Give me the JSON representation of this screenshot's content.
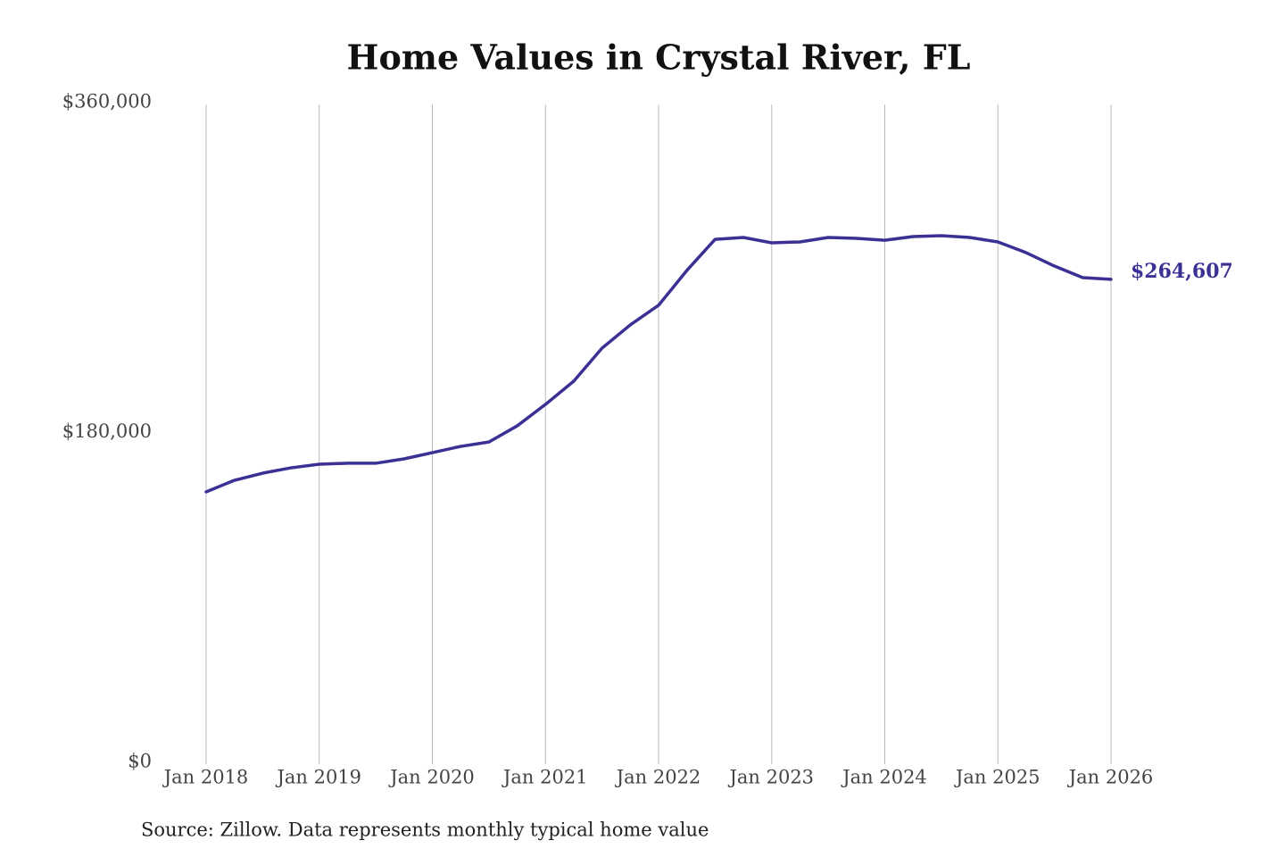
{
  "chart_data": {
    "type": "line",
    "title": "Home Values in Crystal River, FL",
    "source": "Source: Zillow. Data represents monthly typical home value",
    "x": [
      "2018-01",
      "2018-04",
      "2018-07",
      "2018-10",
      "2019-01",
      "2019-04",
      "2019-07",
      "2019-10",
      "2020-01",
      "2020-04",
      "2020-07",
      "2020-10",
      "2021-01",
      "2021-04",
      "2021-07",
      "2021-10",
      "2022-01",
      "2022-04",
      "2022-07",
      "2022-10",
      "2023-01",
      "2023-04",
      "2023-07",
      "2023-10",
      "2024-01",
      "2024-04",
      "2024-07",
      "2024-10",
      "2025-01",
      "2025-04",
      "2025-07",
      "2025-10",
      "2026-01"
    ],
    "series": [
      {
        "name": "Typical home value",
        "color": "#3b3195",
        "values": [
          148600,
          154900,
          158800,
          161700,
          163700,
          164200,
          164200,
          166600,
          170000,
          173400,
          175800,
          184600,
          196300,
          209000,
          227000,
          239700,
          250400,
          269400,
          286400,
          287400,
          284500,
          285000,
          287400,
          286900,
          285900,
          287900,
          288400,
          287400,
          285000,
          279100,
          271800,
          265500,
          264607
        ],
        "value_labels": [
          null,
          null,
          null,
          null,
          null,
          null,
          null,
          null,
          null,
          null,
          null,
          null,
          null,
          null,
          null,
          null,
          null,
          null,
          null,
          null,
          null,
          null,
          null,
          null,
          null,
          null,
          null,
          null,
          null,
          null,
          null,
          null,
          "$264,607"
        ]
      }
    ],
    "xlim": [
      "2018-01",
      "2026-01"
    ],
    "xticks": [
      {
        "value": "2018-01",
        "label": "Jan 2018"
      },
      {
        "value": "2019-01",
        "label": "Jan 2019"
      },
      {
        "value": "2020-01",
        "label": "Jan 2020"
      },
      {
        "value": "2021-01",
        "label": "Jan 2021"
      },
      {
        "value": "2022-01",
        "label": "Jan 2022"
      },
      {
        "value": "2023-01",
        "label": "Jan 2023"
      },
      {
        "value": "2024-01",
        "label": "Jan 2024"
      },
      {
        "value": "2025-01",
        "label": "Jan 2025"
      },
      {
        "value": "2026-01",
        "label": "Jan 2026"
      }
    ],
    "ylim": [
      0,
      360000
    ],
    "yticks": [
      {
        "value": 0,
        "label": "$0"
      },
      {
        "value": 180000,
        "label": "$180,000"
      },
      {
        "value": 360000,
        "label": "$360,000"
      }
    ],
    "grid": "x"
  }
}
